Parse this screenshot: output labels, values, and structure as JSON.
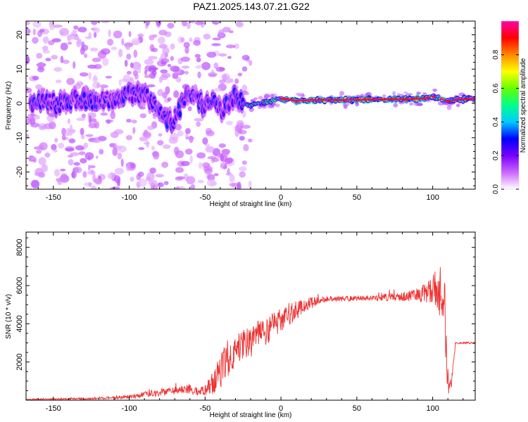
{
  "title": "PAZ1.2025.143.07.21.G22",
  "chart_data": [
    {
      "type": "heatmap",
      "title": "PAZ1.2025.143.07.21.G22",
      "xlabel": "Height of straight line (km)",
      "ylabel": "Frequency (Hz)",
      "xlim": [
        -168,
        128
      ],
      "ylim": [
        -25,
        24
      ],
      "x_ticks": [
        -150,
        -100,
        -50,
        0,
        50,
        100
      ],
      "y_ticks": [
        -20,
        -10,
        0,
        10,
        20
      ],
      "colorbar": {
        "label": "Normalized spectral amplitude",
        "range": [
          0,
          1
        ],
        "ticks": [
          "0.0",
          "0.2",
          "0.4",
          "0.6",
          "0.8"
        ],
        "colormap": [
          "#ffffff",
          "#cc66ff",
          "#7a00ff",
          "#0000ff",
          "#00ccff",
          "#00ff88",
          "#66ff00",
          "#ffff00",
          "#ff8800",
          "#ff0000",
          "#ff00aa"
        ]
      },
      "ridge": {
        "x": [
          -165,
          -155,
          -145,
          -135,
          -125,
          -115,
          -105,
          -98,
          -90,
          -82,
          -76,
          -72,
          -66,
          -60,
          -55,
          -50,
          -45,
          -40,
          -35,
          -30,
          -25,
          -20,
          -10,
          0,
          10,
          20,
          40,
          60,
          80,
          95,
          100,
          105,
          110,
          115,
          128
        ],
        "y": [
          0,
          0.5,
          0,
          1,
          0.5,
          1,
          2,
          3,
          2,
          0,
          -4,
          -6,
          -1,
          3,
          1,
          -1,
          2,
          -2,
          0,
          2,
          0,
          -0.5,
          0.3,
          1.5,
          0.8,
          1.0,
          1.0,
          1.2,
          1.2,
          1.5,
          2.0,
          1.5,
          0.5,
          1.0,
          1.5
        ]
      }
    },
    {
      "type": "line",
      "xlabel": "Height of straight line (km)",
      "ylabel": "SNR (10 * v/v)",
      "xlim": [
        -168,
        128
      ],
      "ylim": [
        0,
        8800
      ],
      "x_ticks": [
        -150,
        -100,
        -50,
        0,
        50,
        100
      ],
      "y_ticks": [
        2000,
        4000,
        6000,
        8000
      ],
      "series": [
        {
          "color": "#ee3333",
          "x": [
            -168,
            -150,
            -130,
            -110,
            -100,
            -90,
            -80,
            -70,
            -60,
            -55,
            -50,
            -45,
            -40,
            -35,
            -30,
            -25,
            -20,
            -15,
            -10,
            -5,
            0,
            5,
            10,
            15,
            20,
            25,
            30,
            40,
            50,
            60,
            70,
            80,
            90,
            95,
            100,
            103,
            106,
            108,
            110,
            112,
            115,
            120,
            128
          ],
          "values": [
            50,
            60,
            80,
            120,
            180,
            300,
            400,
            500,
            600,
            450,
            500,
            900,
            1500,
            2200,
            2500,
            3000,
            3000,
            3500,
            3400,
            3900,
            4200,
            4500,
            4700,
            4900,
            5100,
            5200,
            5300,
            5300,
            5350,
            5350,
            5400,
            5450,
            5500,
            5600,
            5800,
            5900,
            5700,
            4500,
            1000,
            500,
            3000,
            3000,
            3000
          ],
          "spread": [
            30,
            40,
            50,
            80,
            100,
            150,
            200,
            200,
            250,
            200,
            250,
            600,
            900,
            1000,
            800,
            900,
            800,
            700,
            800,
            700,
            600,
            600,
            500,
            400,
            300,
            200,
            150,
            150,
            150,
            150,
            200,
            250,
            350,
            500,
            700,
            1200,
            1500,
            1800,
            800,
            400,
            60,
            50,
            50
          ]
        }
      ]
    }
  ]
}
